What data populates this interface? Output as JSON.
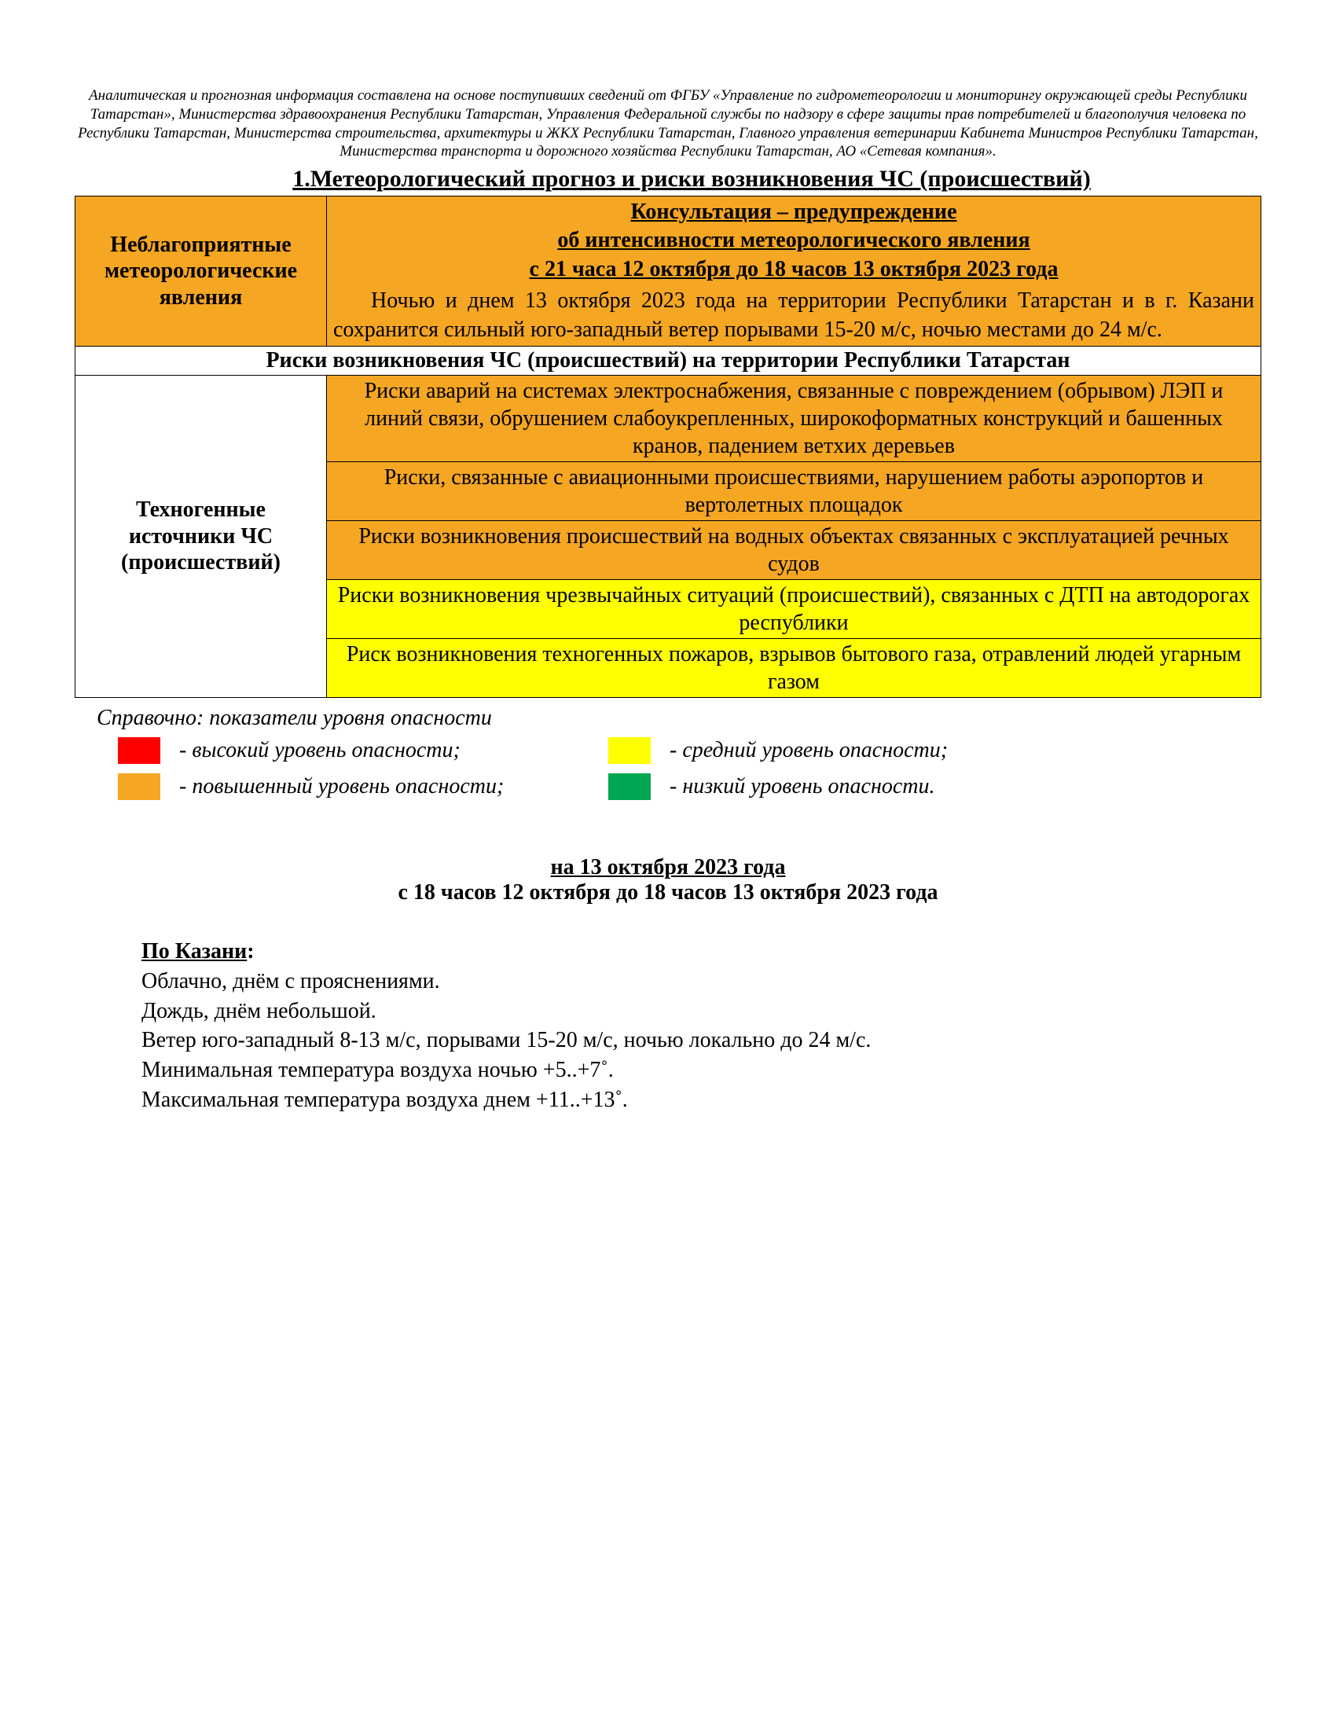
{
  "colors": {
    "orange": "#f5a623",
    "yellow": "#ffff00",
    "red": "#ff0000",
    "green": "#00a651",
    "white": "#ffffff"
  },
  "headerNote": "Аналитическая и прогнозная информация составлена на основе поступивших сведений от ФГБУ «Управление по гидрометеорологии и мониторингу окружающей среды Республики Татарстан»,  Министерства здравоохранения Республики Татарстан, Управления Федеральной службы по надзору в сфере защиты прав потребителей и благополучия человека по Республики Татарстан, Министерства строительства, архитектуры и ЖКХ Республики Татарстан, Главного управления ветеринарии Кабинета Министров Республики Татарстан, Министерства транспорта и дорожного хозяйства Республики Татарстан, АО «Сетевая компания».",
  "sectionTitle": "1.Метеорологический прогноз и риски возникновения ЧС (происшествий)",
  "adverse": {
    "label": "Неблагоприятные метеорологические явления",
    "warnLine1": "Консультация – предупреждение ",
    "warnLine2": "об интенсивности метеорологического явления",
    "warnLine3": "с 21 часа 12 октября до 18 часов 13 октября 2023 года",
    "body": "Ночью и днем 13 октября 2023 года на территории Республики Татарстан и в г. Казани сохранится  сильный юго-западный ветер порывами 15-20 м/с, ночью местами до 24 м/с."
  },
  "risksHeader": "Риски возникновения ЧС (происшествий) на территории Республики Татарстан",
  "techLabel": "Техногенные источники ЧС (происшествий)",
  "risks": [
    {
      "text": "Риски аварий на системах электроснабжения, связанные с повреждением (обрывом) ЛЭП и линий связи, обрушением слабоукрепленных, широкоформатных конструкций и башенных кранов, падением ветхих деревьев",
      "colorKey": "orange"
    },
    {
      "text": "Риски, связанные с авиационными происшествиями, нарушением работы аэропортов и вертолетных площадок",
      "colorKey": "orange"
    },
    {
      "text": "Риски возникновения происшествий на водных объектах связанных с эксплуатацией речных судов",
      "colorKey": "orange"
    },
    {
      "text": "Риски возникновения чрезвычайных ситуаций (происшествий), связанных с ДТП на автодорогах республики",
      "colorKey": "yellow"
    },
    {
      "text": "Риск возникновения техногенных пожаров, взрывов бытового газа, отравлений людей угарным газом",
      "colorKey": "yellow"
    }
  ],
  "legend": {
    "title": "Справочно: показатели уровня опасности",
    "items": [
      {
        "colorKey": "red",
        "label": "- высокий уровень опасности;"
      },
      {
        "colorKey": "yellow",
        "label": "- средний уровень опасности;"
      },
      {
        "colorKey": "orange",
        "label": "- повышенный уровень опасности;"
      },
      {
        "colorKey": "green",
        "label": "- низкий уровень опасности."
      }
    ]
  },
  "forecast": {
    "dateLine": "на 13 октября 2023 года",
    "rangeLine": "с 18 часов 12 октября до 18 часов 13 октября 2023 года",
    "cityTitle": "По Казани",
    "lines": [
      "Облачно, днём с прояснениями.",
      "Дождь, днём небольшой.",
      "Ветер юго-западный 8-13 м/с, порывами 15-20 м/с, ночью локально до 24 м/с.",
      "Минимальная температура воздуха ночью +5..+7˚.",
      "Максимальная температура воздуха днем +11..+13˚."
    ]
  }
}
